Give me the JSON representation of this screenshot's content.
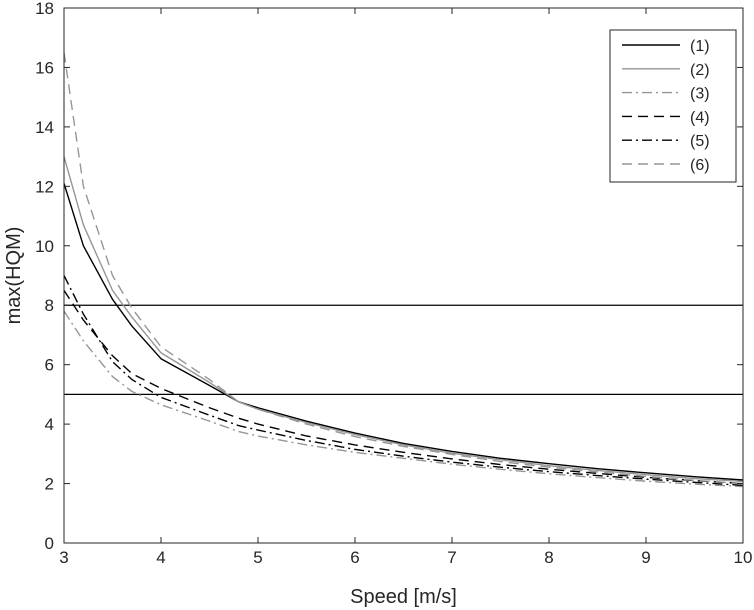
{
  "chart_data": {
    "type": "line",
    "title": "",
    "xlabel": "Speed [m/s]",
    "ylabel": "max(HQM)",
    "xlim": [
      3,
      10
    ],
    "ylim": [
      0,
      18
    ],
    "xticks": [
      3,
      4,
      5,
      6,
      7,
      8,
      9,
      10
    ],
    "yticks": [
      0,
      2,
      4,
      6,
      8,
      10,
      12,
      14,
      16,
      18
    ],
    "grid": false,
    "legend_position": "top-right",
    "x": [
      3.0,
      3.2,
      3.5,
      3.7,
      4.0,
      4.5,
      4.8,
      5.0,
      5.5,
      6.0,
      6.5,
      7.0,
      7.5,
      8.0,
      8.5,
      9.0,
      9.5,
      10.0
    ],
    "series": [
      {
        "name": "(1)",
        "color": "#000000",
        "dash": "solid",
        "values": [
          12.1,
          10.0,
          8.2,
          7.3,
          6.2,
          5.3,
          4.75,
          4.55,
          4.1,
          3.7,
          3.35,
          3.08,
          2.85,
          2.67,
          2.5,
          2.36,
          2.23,
          2.12
        ]
      },
      {
        "name": "(2)",
        "color": "#969696",
        "dash": "solid",
        "values": [
          13.0,
          10.7,
          8.5,
          7.6,
          6.4,
          5.4,
          4.75,
          4.5,
          4.05,
          3.65,
          3.3,
          3.02,
          2.8,
          2.6,
          2.44,
          2.3,
          2.17,
          2.07
        ]
      },
      {
        "name": "(3)",
        "color": "#969696",
        "dash": "dashdot",
        "values": [
          7.8,
          6.8,
          5.6,
          5.1,
          4.65,
          4.1,
          3.75,
          3.6,
          3.3,
          3.05,
          2.85,
          2.65,
          2.48,
          2.33,
          2.2,
          2.08,
          1.98,
          1.9
        ]
      },
      {
        "name": "(4)",
        "color": "#000000",
        "dash": "dashed",
        "values": [
          8.5,
          7.5,
          6.3,
          5.7,
          5.2,
          4.55,
          4.2,
          4.0,
          3.6,
          3.3,
          3.05,
          2.83,
          2.64,
          2.48,
          2.34,
          2.21,
          2.1,
          2.0
        ]
      },
      {
        "name": "(5)",
        "color": "#000000",
        "dash": "dashdot",
        "values": [
          9.0,
          7.7,
          6.1,
          5.5,
          4.9,
          4.3,
          3.95,
          3.8,
          3.45,
          3.15,
          2.92,
          2.72,
          2.55,
          2.4,
          2.27,
          2.15,
          2.04,
          1.94
        ]
      },
      {
        "name": "(6)",
        "color": "#969696",
        "dash": "dashed",
        "values": [
          16.5,
          12.0,
          9.0,
          7.9,
          6.6,
          5.5,
          4.75,
          4.5,
          4.0,
          3.58,
          3.25,
          2.98,
          2.74,
          2.55,
          2.39,
          2.24,
          2.11,
          2.0
        ]
      }
    ],
    "reference_lines": [
      {
        "axis": "y",
        "value": 8,
        "color": "#000000"
      },
      {
        "axis": "y",
        "value": 5,
        "color": "#000000"
      }
    ]
  }
}
